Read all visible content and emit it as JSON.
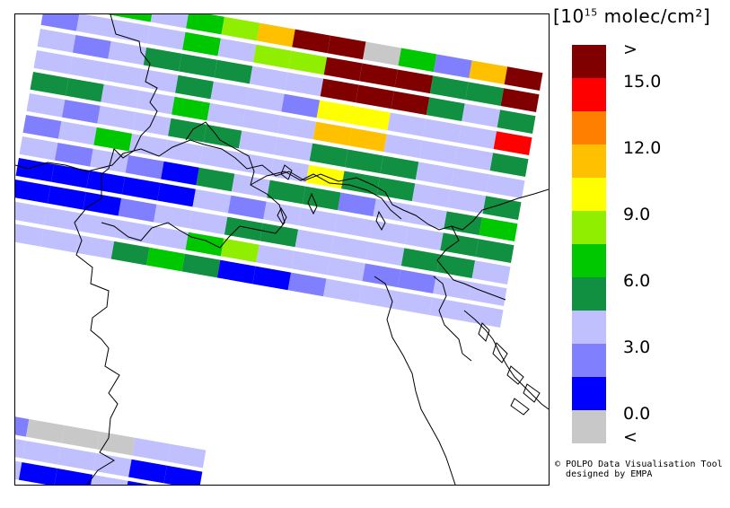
{
  "legend": {
    "units": "molec/cm²",
    "exponent": "15",
    "ticks": [
      ">",
      "15.0",
      "12.0",
      "9.0",
      "6.0",
      "3.0",
      "0.0",
      "<"
    ],
    "colors": [
      "#800000",
      "#ff0000",
      "#ff8000",
      "#ffc000",
      "#ffff00",
      "#90ee00",
      "#00c800",
      "#109040",
      "#c0c0ff",
      "#8080ff",
      "#0000ff",
      "#c8c8c8"
    ]
  },
  "credit": {
    "line1": "© POLPO Data Visualisation Tool",
    "line2": "designed by EMPA"
  },
  "swaths": [
    [
      "#109040",
      "#00c800",
      "#00c800",
      "#c0c0ff",
      "#00c800",
      "#90ee00",
      "#ffc000",
      "#800000",
      "#800000",
      "#c8c8c8",
      "#00c800",
      "#8080ff",
      "#ffc000",
      "#800000"
    ],
    [
      "#8080ff",
      "#c0c0ff",
      "#c0c0ff",
      "#c0c0ff",
      "#00c800",
      "#c0c0ff",
      "#90ee00",
      "#90ee00",
      "#800000",
      "#800000",
      "#800000",
      "#109040",
      "#109040",
      "#800000"
    ],
    [
      "#c0c0ff",
      "#8080ff",
      "#c0c0ff",
      "#109040",
      "#109040",
      "#109040",
      "#c0c0ff",
      "#c0c0ff",
      "#800000",
      "#800000",
      "#800000",
      "#109040",
      "#c0c0ff",
      "#109040"
    ],
    [
      "#c0c0ff",
      "#c0c0ff",
      "#c0c0ff",
      "#c0c0ff",
      "#109040",
      "#c0c0ff",
      "#c0c0ff",
      "#8080ff",
      "#ffff00",
      "#ffff00",
      "#c0c0ff",
      "#c0c0ff",
      "#c0c0ff",
      "#ff0000"
    ],
    [
      "#109040",
      "#109040",
      "#c0c0ff",
      "#c0c0ff",
      "#00c800",
      "#c0c0ff",
      "#c0c0ff",
      "#c0c0ff",
      "#ffc000",
      "#ffc000",
      "#c0c0ff",
      "#c0c0ff",
      "#c0c0ff",
      "#109040"
    ],
    [
      "#c0c0ff",
      "#8080ff",
      "#c0c0ff",
      "#c0c0ff",
      "#109040",
      "#109040",
      "#c0c0ff",
      "#c0c0ff",
      "#109040",
      "#109040",
      "#109040",
      "#c0c0ff",
      "#c0c0ff",
      "#c0c0ff"
    ],
    [
      "#8080ff",
      "#c0c0ff",
      "#00c800",
      "#c0c0ff",
      "#c0c0ff",
      "#c0c0ff",
      "#c0c0ff",
      "#c0c0ff",
      "#ffff00",
      "#109040",
      "#109040",
      "#c0c0ff",
      "#c0c0ff",
      "#109040"
    ],
    [
      "#c0c0ff",
      "#8080ff",
      "#c0c0ff",
      "#8080ff",
      "#0000ff",
      "#109040",
      "#c0c0ff",
      "#109040",
      "#109040",
      "#8080ff",
      "#c0c0ff",
      "#c0c0ff",
      "#109040",
      "#00c800"
    ],
    [
      "#0000ff",
      "#0000ff",
      "#0000ff",
      "#0000ff",
      "#0000ff",
      "#c0c0ff",
      "#8080ff",
      "#c0c0ff",
      "#c0c0ff",
      "#c0c0ff",
      "#c0c0ff",
      "#c0c0ff",
      "#109040",
      "#109040"
    ],
    [
      "#0000ff",
      "#0000ff",
      "#0000ff",
      "#8080ff",
      "#c0c0ff",
      "#c0c0ff",
      "#109040",
      "#109040",
      "#c0c0ff",
      "#c0c0ff",
      "#c0c0ff",
      "#109040",
      "#109040",
      "#c0c0ff"
    ],
    [
      "#c0c0ff",
      "#c0c0ff",
      "#c0c0ff",
      "#c0c0ff",
      "#c0c0ff",
      "#00c800",
      "#90ee00",
      "#c0c0ff",
      "#c0c0ff",
      "#c0c0ff",
      "#8080ff",
      "#8080ff",
      "#c0c0ff",
      "#c0c0ff"
    ],
    [
      "#c0c0ff",
      "#c0c0ff",
      "#c0c0ff",
      "#109040",
      "#00c800",
      "#109040",
      "#0000ff",
      "#0000ff",
      "#8080ff",
      "#c0c0ff",
      "#c0c0ff",
      "#c0c0ff",
      "#c0c0ff",
      "#c0c0ff"
    ]
  ],
  "bottom_swaths": [
    [
      "#8080ff",
      "#c8c8c8",
      "#c8c8c8",
      "#c8c8c8",
      "#c0c0ff",
      "#c0c0ff"
    ],
    [
      "#c0c0ff",
      "#c0c0ff",
      "#c0c0ff",
      "#c0c0ff",
      "#0000ff",
      "#0000ff"
    ],
    [
      "#c0c0ff",
      "#0000ff",
      "#0000ff",
      "#c0c0ff",
      "#0000ff",
      "#c0c0ff"
    ]
  ]
}
